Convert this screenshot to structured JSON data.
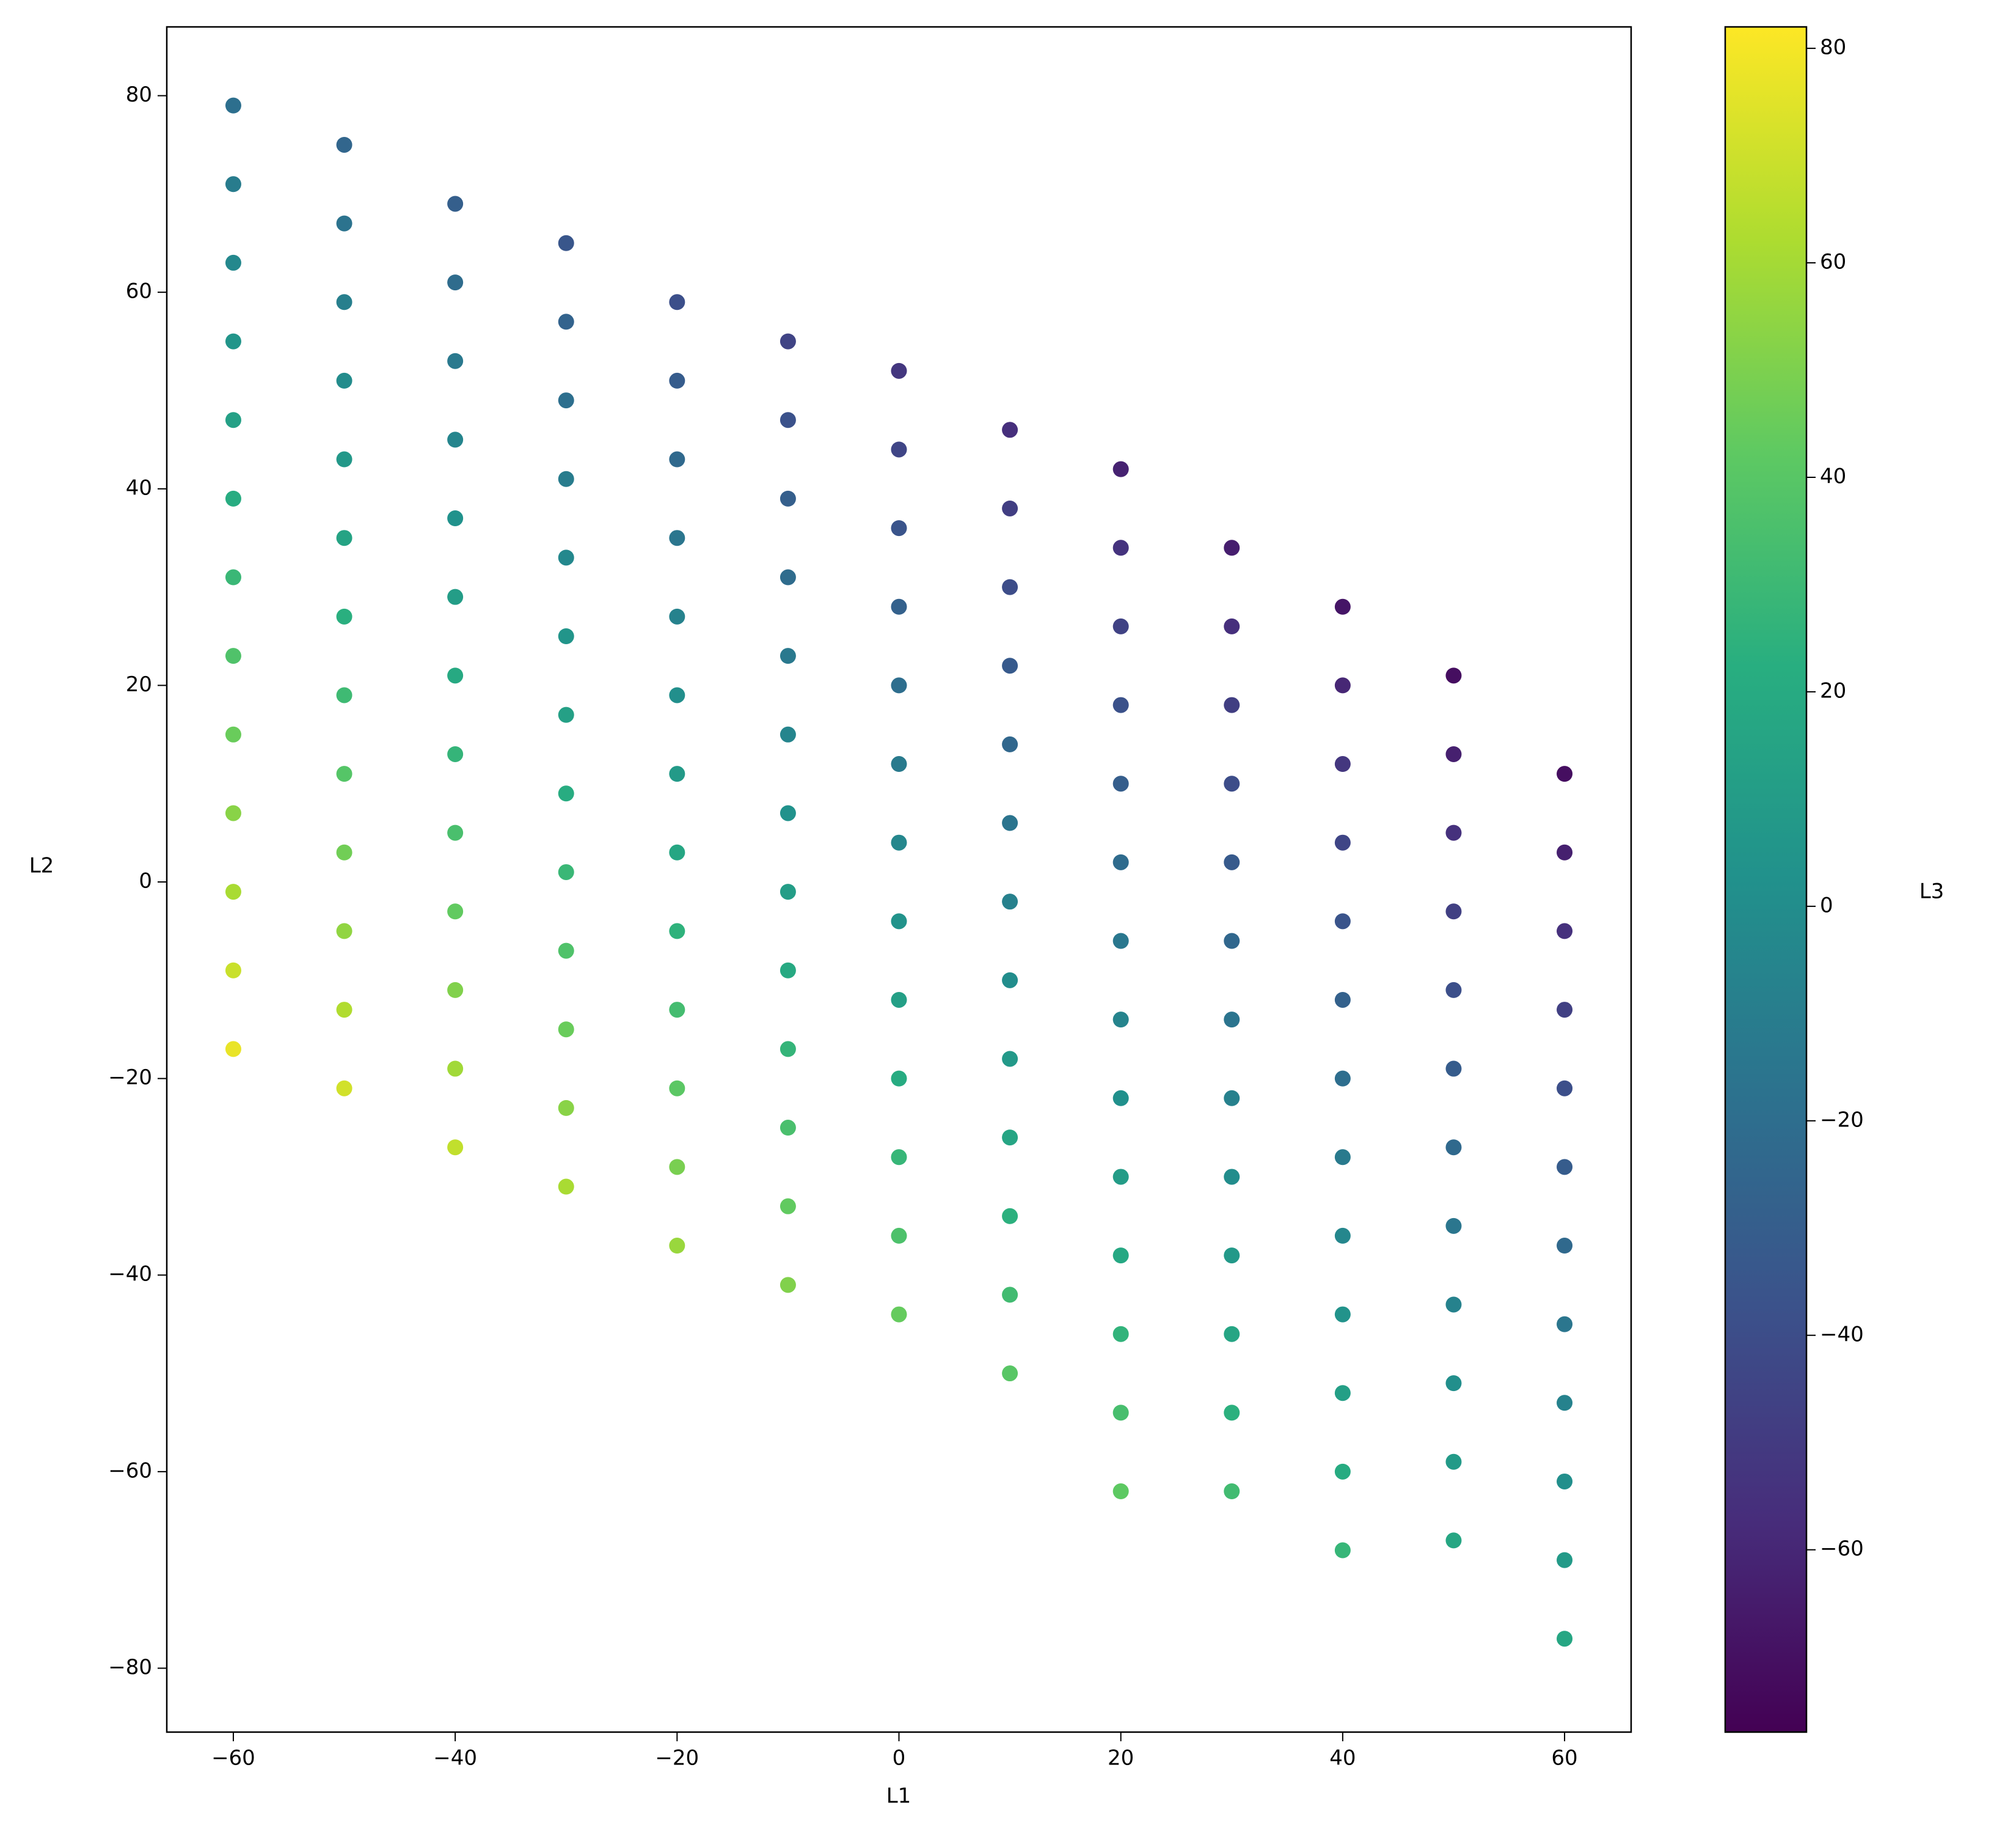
{
  "chart_data": {
    "type": "scatter",
    "xlabel": "L1",
    "ylabel": "L2",
    "colorbar_label": "L3",
    "cmap": "viridis",
    "x": [
      -60,
      -60,
      -60,
      -60,
      -60,
      -60,
      -60,
      -60,
      -60,
      -60,
      -60,
      -60,
      -60,
      -50,
      -50,
      -50,
      -50,
      -50,
      -50,
      -50,
      -50,
      -50,
      -50,
      -50,
      -50,
      -50,
      -40,
      -40,
      -40,
      -40,
      -40,
      -40,
      -40,
      -40,
      -40,
      -40,
      -40,
      -40,
      -40,
      -30,
      -30,
      -30,
      -30,
      -30,
      -30,
      -30,
      -30,
      -30,
      -30,
      -30,
      -30,
      -30,
      -20,
      -20,
      -20,
      -20,
      -20,
      -20,
      -20,
      -20,
      -20,
      -20,
      -20,
      -20,
      -20,
      -10,
      -10,
      -10,
      -10,
      -10,
      -10,
      -10,
      -10,
      -10,
      -10,
      -10,
      -10,
      -10,
      0,
      0,
      0,
      0,
      0,
      0,
      0,
      0,
      0,
      0,
      0,
      0,
      0,
      10,
      10,
      10,
      10,
      10,
      10,
      10,
      10,
      10,
      10,
      10,
      10,
      10,
      20,
      20,
      20,
      20,
      20,
      20,
      20,
      20,
      20,
      20,
      20,
      20,
      20,
      20,
      30,
      30,
      30,
      30,
      30,
      30,
      30,
      30,
      30,
      30,
      30,
      30,
      30,
      40,
      40,
      40,
      40,
      40,
      40,
      40,
      40,
      40,
      40,
      40,
      40,
      40,
      50,
      50,
      50,
      50,
      50,
      50,
      50,
      50,
      50,
      50,
      50,
      50,
      60,
      60,
      60,
      60,
      60,
      60,
      60,
      60,
      60,
      60,
      60,
      60
    ],
    "y": [
      79,
      71,
      63,
      55,
      47,
      39,
      31,
      23,
      15,
      7,
      -1,
      -9,
      -17,
      75,
      67,
      59,
      51,
      43,
      35,
      27,
      19,
      11,
      3,
      -5,
      -13,
      -21,
      69,
      61,
      53,
      45,
      37,
      29,
      21,
      13,
      5,
      -3,
      -11,
      -19,
      -27,
      65,
      57,
      49,
      41,
      33,
      25,
      17,
      9,
      1,
      -7,
      -15,
      -23,
      -31,
      59,
      51,
      43,
      35,
      27,
      19,
      11,
      3,
      -5,
      -13,
      -21,
      -29,
      -37,
      55,
      47,
      39,
      31,
      23,
      15,
      7,
      -1,
      -9,
      -17,
      -25,
      -33,
      -41,
      52,
      44,
      36,
      28,
      20,
      12,
      4,
      -4,
      -12,
      -20,
      -28,
      -36,
      -44,
      46,
      38,
      30,
      22,
      14,
      6,
      -2,
      -10,
      -18,
      -26,
      -34,
      -42,
      -50,
      42,
      34,
      26,
      18,
      10,
      2,
      -6,
      -14,
      -22,
      -30,
      -38,
      -46,
      -54,
      -62,
      34,
      26,
      18,
      10,
      2,
      -6,
      -14,
      -22,
      -30,
      -38,
      -46,
      -54,
      -62,
      28,
      20,
      12,
      4,
      -4,
      -12,
      -20,
      -28,
      -36,
      -44,
      -52,
      -60,
      -68,
      21,
      13,
      5,
      -3,
      -11,
      -19,
      -27,
      -35,
      -43,
      -51,
      -59,
      -67,
      11,
      3,
      -5,
      -13,
      -21,
      -29,
      -37,
      -45,
      -53,
      -61,
      -69,
      -77
    ],
    "c": [
      -19,
      -11,
      -3,
      5,
      13,
      21,
      29,
      37,
      45,
      53,
      61,
      69,
      77,
      -25,
      -17,
      -9,
      -1,
      7,
      15,
      23,
      31,
      39,
      47,
      55,
      63,
      71,
      -29,
      -21,
      -13,
      -5,
      3,
      11,
      19,
      27,
      35,
      43,
      51,
      59,
      67,
      -35,
      -27,
      -19,
      -11,
      -3,
      5,
      13,
      21,
      29,
      37,
      45,
      53,
      61,
      -39,
      -31,
      -23,
      -15,
      -7,
      1,
      9,
      17,
      25,
      33,
      41,
      49,
      57,
      -45,
      -37,
      -29,
      -21,
      -13,
      -5,
      3,
      11,
      19,
      27,
      35,
      43,
      51,
      -52,
      -44,
      -36,
      -28,
      -20,
      -12,
      -4,
      4,
      12,
      20,
      28,
      36,
      44,
      -56,
      -48,
      -40,
      -32,
      -24,
      -16,
      -8,
      0,
      8,
      16,
      24,
      32,
      40,
      -62,
      -54,
      -46,
      -38,
      -30,
      -22,
      -14,
      -6,
      2,
      10,
      18,
      26,
      34,
      42,
      -64,
      -56,
      -48,
      -40,
      -32,
      -24,
      -16,
      -8,
      0,
      8,
      16,
      24,
      32,
      -68,
      -60,
      -52,
      -44,
      -36,
      -28,
      -20,
      -12,
      -4,
      4,
      12,
      20,
      28,
      -71,
      -63,
      -55,
      -47,
      -39,
      -31,
      -23,
      -15,
      -7,
      1,
      9,
      17,
      -71,
      -63,
      -55,
      -47,
      -39,
      -31,
      -23,
      -15,
      -7,
      1,
      9,
      17
    ],
    "xlim": [
      -66,
      66
    ],
    "ylim": [
      -86.5,
      87
    ],
    "clim": [
      -77,
      82
    ],
    "xticks": [
      {
        "value": -60,
        "label": "−60"
      },
      {
        "value": -40,
        "label": "−40"
      },
      {
        "value": -20,
        "label": "−20"
      },
      0,
      20,
      40,
      60
    ],
    "yticks": [
      {
        "value": -80,
        "label": "−80"
      },
      {
        "value": -60,
        "label": "−60"
      },
      {
        "value": -40,
        "label": "−40"
      },
      {
        "value": -20,
        "label": "−20"
      },
      0,
      20,
      40,
      60,
      80
    ],
    "cticks": [
      {
        "value": -60,
        "label": "−60"
      },
      {
        "value": -40,
        "label": "−40"
      },
      {
        "value": -20,
        "label": "−20"
      },
      0,
      20,
      40,
      60,
      80
    ]
  }
}
